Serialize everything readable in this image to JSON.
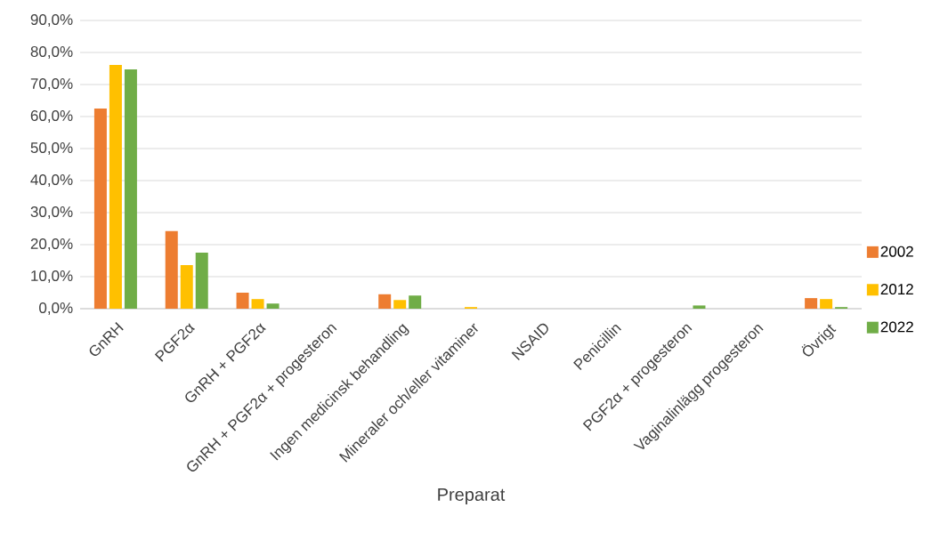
{
  "chart_data": {
    "type": "bar",
    "xlabel": "Preparat",
    "categories": [
      "GnRH",
      "PGF2α",
      "GnRH + PGF2α",
      "GnRH + PGF2α + progesteron",
      "Ingen medicinsk behandling",
      "Mineraler och/eller vitaminer",
      "NSAID",
      "Penicillin",
      "PGF2α + progesteron",
      "Vaginalinlägg progesteron",
      "Övrigt"
    ],
    "series": [
      {
        "name": "2002",
        "color": "#ed7d31",
        "values": [
          62.5,
          24.2,
          5.0,
          0,
          4.5,
          0,
          0,
          0,
          0,
          0,
          3.3
        ]
      },
      {
        "name": "2012",
        "color": "#ffc000",
        "values": [
          76.1,
          13.6,
          3.0,
          0,
          2.7,
          0.5,
          0,
          0,
          0,
          0,
          3.0
        ]
      },
      {
        "name": "2022",
        "color": "#70ad47",
        "values": [
          74.7,
          17.5,
          1.6,
          0,
          4.1,
          0,
          0,
          0,
          1.0,
          0,
          0.5
        ]
      }
    ],
    "ylim": [
      0,
      90
    ],
    "yticks": [
      {
        "value": 0,
        "label": "0,0%"
      },
      {
        "value": 10,
        "label": "10,0%"
      },
      {
        "value": 20,
        "label": "20,0%"
      },
      {
        "value": 30,
        "label": "30,0%"
      },
      {
        "value": 40,
        "label": "40,0%"
      },
      {
        "value": 50,
        "label": "50,0%"
      },
      {
        "value": 60,
        "label": "60,0%"
      },
      {
        "value": 70,
        "label": "70,0%"
      },
      {
        "value": 80,
        "label": "80,0%"
      },
      {
        "value": 90,
        "label": "90,0%"
      }
    ],
    "grid": "y",
    "legend": "right"
  }
}
